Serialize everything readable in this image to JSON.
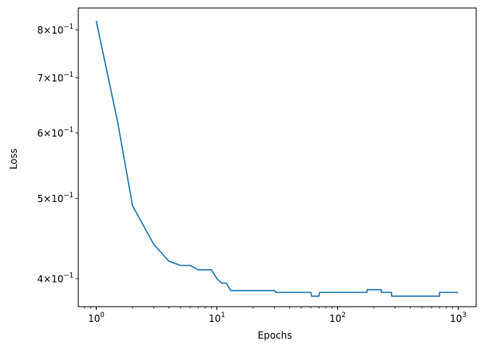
{
  "chart_data": {
    "type": "line",
    "title": "",
    "xlabel": "Epochs",
    "ylabel": "Loss",
    "xscale": "log",
    "yscale": "log",
    "xlim": [
      0.71,
      1410
    ],
    "ylim": [
      0.37,
      0.85
    ],
    "grid": false,
    "line_color": "#1f77b4",
    "x_ticks": [
      {
        "value": 1,
        "base": "10",
        "exp": "0"
      },
      {
        "value": 10,
        "base": "10",
        "exp": "1"
      },
      {
        "value": 100,
        "base": "10",
        "exp": "2"
      },
      {
        "value": 1000,
        "base": "10",
        "exp": "3"
      }
    ],
    "y_ticks": [
      {
        "value": 0.4,
        "mant": "4",
        "base": "10",
        "exp": "−1"
      },
      {
        "value": 0.5,
        "mant": "5",
        "base": "10",
        "exp": "−1"
      },
      {
        "value": 0.6,
        "mant": "6",
        "base": "10",
        "exp": "−1"
      },
      {
        "value": 0.7,
        "mant": "7",
        "base": "10",
        "exp": "−1"
      },
      {
        "value": 0.8,
        "mant": "8",
        "base": "10",
        "exp": "−1"
      }
    ],
    "series": [
      {
        "x": [
          1,
          1.5,
          2,
          3,
          4,
          5,
          6,
          7,
          8,
          9,
          10,
          11,
          12,
          13,
          30,
          31,
          60,
          61,
          70,
          71,
          175,
          176,
          230,
          231,
          280,
          281,
          700,
          701,
          1000
        ],
        "y": [
          0.82,
          0.62,
          0.49,
          0.44,
          0.42,
          0.415,
          0.415,
          0.41,
          0.41,
          0.41,
          0.4,
          0.395,
          0.395,
          0.387,
          0.387,
          0.385,
          0.385,
          0.381,
          0.381,
          0.385,
          0.385,
          0.388,
          0.388,
          0.385,
          0.385,
          0.381,
          0.381,
          0.385,
          0.385
        ]
      }
    ]
  }
}
